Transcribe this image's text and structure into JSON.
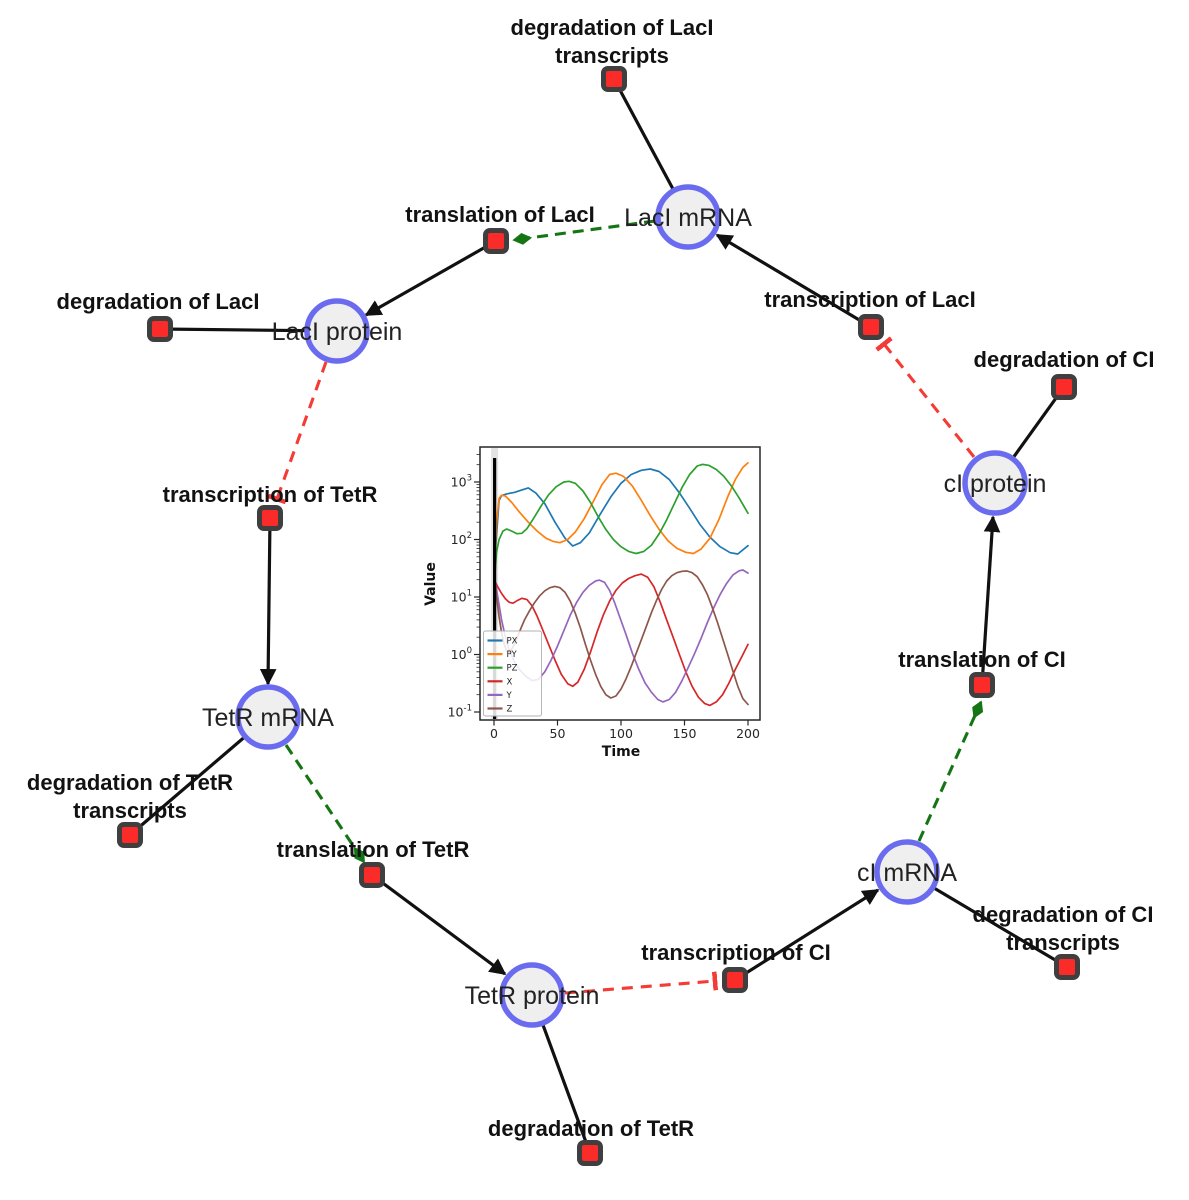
{
  "figure": {
    "background": "#ffffff",
    "species_nodes": {
      "laci_mrna": {
        "label": "LacI mRNA"
      },
      "laci_protein": {
        "label": "LacI protein"
      },
      "tetr_mrna": {
        "label": "TetR mRNA"
      },
      "tetr_protein": {
        "label": "TetR protein"
      },
      "ci_mrna": {
        "label": "cI mRNA"
      },
      "ci_protein": {
        "label": "cI protein"
      }
    },
    "reaction_nodes": {
      "deg_laci_tx": {
        "lines": [
          "degradation of LacI",
          "transcripts"
        ]
      },
      "transl_laci": {
        "label": "translation of LacI"
      },
      "deg_laci": {
        "label": "degradation of LacI"
      },
      "transcr_laci": {
        "label": "transcription of LacI"
      },
      "deg_ci": {
        "label": "degradation of CI"
      },
      "transcr_tetr": {
        "label": "transcription of TetR"
      },
      "deg_tetr_tx": {
        "lines": [
          "degradation of TetR",
          "transcripts"
        ]
      },
      "transl_tetr": {
        "label": "translation of TetR"
      },
      "transl_ci": {
        "label": "translation of CI"
      },
      "deg_ci_tx": {
        "lines": [
          "degradation of CI",
          "transcripts"
        ]
      },
      "transcr_ci": {
        "label": "transcription of CI"
      },
      "deg_tetr": {
        "label": "degradation of TetR"
      }
    },
    "style": {
      "species_fill": "#efefef",
      "species_border": "#6b6bf0",
      "reaction_fill": "#fb2b2a",
      "reaction_border": "#3f3f3f",
      "edge_black": "#111111",
      "edge_activation_green": "#157515",
      "edge_inhibition_red": "#f43b35"
    }
  },
  "chart_data": {
    "type": "line",
    "title": "",
    "xlabel": "Time",
    "ylabel": "Value",
    "x_range": [
      0,
      200
    ],
    "xticks": [
      0,
      50,
      100,
      150,
      200
    ],
    "y_scale": "log",
    "ytick_exponents": [
      -1,
      0,
      1,
      2,
      3
    ],
    "ytick_base": "10",
    "grid": false,
    "legend_position": "lower left",
    "t0_marker": {
      "t": 0.5,
      "line_color": "#000000",
      "band_color": "#c8c8c8"
    },
    "series": [
      {
        "name": "PX",
        "color": "#1f77b4",
        "points": [
          [
            0,
            25
          ],
          [
            2,
            120
          ],
          [
            4,
            480
          ],
          [
            6,
            580
          ],
          [
            10,
            620
          ],
          [
            16,
            660
          ],
          [
            22,
            730
          ],
          [
            27,
            790
          ],
          [
            33,
            640
          ],
          [
            40,
            420
          ],
          [
            48,
            200
          ],
          [
            56,
            105
          ],
          [
            62,
            77
          ],
          [
            68,
            88
          ],
          [
            75,
            130
          ],
          [
            83,
            260
          ],
          [
            92,
            550
          ],
          [
            100,
            950
          ],
          [
            108,
            1350
          ],
          [
            116,
            1600
          ],
          [
            123,
            1680
          ],
          [
            130,
            1520
          ],
          [
            138,
            1100
          ],
          [
            146,
            650
          ],
          [
            154,
            350
          ],
          [
            162,
            185
          ],
          [
            170,
            110
          ],
          [
            178,
            75
          ],
          [
            186,
            59
          ],
          [
            192,
            56
          ],
          [
            200,
            78
          ]
        ]
      },
      {
        "name": "PY",
        "color": "#ff7f0e",
        "points": [
          [
            0,
            20
          ],
          [
            2,
            200
          ],
          [
            4,
            520
          ],
          [
            6,
            590
          ],
          [
            9,
            570
          ],
          [
            14,
            440
          ],
          [
            20,
            300
          ],
          [
            27,
            200
          ],
          [
            34,
            140
          ],
          [
            41,
            105
          ],
          [
            47,
            92
          ],
          [
            52,
            88
          ],
          [
            58,
            100
          ],
          [
            64,
            135
          ],
          [
            71,
            230
          ],
          [
            78,
            450
          ],
          [
            85,
            900
          ],
          [
            91,
            1350
          ],
          [
            96,
            1420
          ],
          [
            102,
            1250
          ],
          [
            109,
            850
          ],
          [
            116,
            480
          ],
          [
            123,
            260
          ],
          [
            130,
            150
          ],
          [
            137,
            95
          ],
          [
            144,
            70
          ],
          [
            151,
            60
          ],
          [
            157,
            57
          ],
          [
            163,
            68
          ],
          [
            170,
            105
          ],
          [
            177,
            220
          ],
          [
            184,
            550
          ],
          [
            190,
            1100
          ],
          [
            196,
            1800
          ],
          [
            200,
            2150
          ]
        ]
      },
      {
        "name": "PZ",
        "color": "#2ca02c",
        "points": [
          [
            0,
            15
          ],
          [
            2,
            60
          ],
          [
            4,
            100
          ],
          [
            7,
            140
          ],
          [
            10,
            152
          ],
          [
            14,
            140
          ],
          [
            18,
            126
          ],
          [
            22,
            128
          ],
          [
            26,
            155
          ],
          [
            31,
            230
          ],
          [
            37,
            380
          ],
          [
            43,
            600
          ],
          [
            49,
            830
          ],
          [
            55,
            1000
          ],
          [
            59,
            1030
          ],
          [
            64,
            950
          ],
          [
            70,
            700
          ],
          [
            76,
            440
          ],
          [
            82,
            250
          ],
          [
            88,
            150
          ],
          [
            94,
            100
          ],
          [
            100,
            75
          ],
          [
            106,
            62
          ],
          [
            112,
            57
          ],
          [
            118,
            62
          ],
          [
            124,
            80
          ],
          [
            130,
            125
          ],
          [
            136,
            220
          ],
          [
            142,
            420
          ],
          [
            148,
            800
          ],
          [
            154,
            1350
          ],
          [
            160,
            1900
          ],
          [
            164,
            2020
          ],
          [
            169,
            1950
          ],
          [
            175,
            1650
          ],
          [
            181,
            1250
          ],
          [
            187,
            850
          ],
          [
            193,
            530
          ],
          [
            200,
            285
          ]
        ]
      },
      {
        "name": "X",
        "color": "#d62728",
        "points": [
          [
            0,
            20
          ],
          [
            3,
            15
          ],
          [
            6,
            11.5
          ],
          [
            9,
            9.3
          ],
          [
            12,
            8.1
          ],
          [
            15,
            7.8
          ],
          [
            18,
            8.6
          ],
          [
            22,
            9.5
          ],
          [
            26,
            9
          ],
          [
            30,
            7
          ],
          [
            34,
            4.6
          ],
          [
            38,
            2.8
          ],
          [
            43,
            1.5
          ],
          [
            48,
            0.8
          ],
          [
            53,
            0.45
          ],
          [
            58,
            0.31
          ],
          [
            62,
            0.28
          ],
          [
            66,
            0.33
          ],
          [
            71,
            0.55
          ],
          [
            76,
            1.1
          ],
          [
            81,
            2.4
          ],
          [
            86,
            4.8
          ],
          [
            91,
            8.5
          ],
          [
            96,
            13
          ],
          [
            101,
            17.5
          ],
          [
            106,
            21
          ],
          [
            111,
            23.5
          ],
          [
            116,
            25
          ],
          [
            121,
            22
          ],
          [
            126,
            15
          ],
          [
            131,
            8
          ],
          [
            136,
            4
          ],
          [
            141,
            2
          ],
          [
            146,
            1
          ],
          [
            151,
            0.5
          ],
          [
            156,
            0.28
          ],
          [
            161,
            0.18
          ],
          [
            166,
            0.14
          ],
          [
            170,
            0.13
          ],
          [
            175,
            0.15
          ],
          [
            180,
            0.2
          ],
          [
            185,
            0.32
          ],
          [
            190,
            0.55
          ],
          [
            195,
            0.9
          ],
          [
            200,
            1.5
          ]
        ]
      },
      {
        "name": "Y",
        "color": "#9467bd",
        "points": [
          [
            0,
            25
          ],
          [
            3,
            10
          ],
          [
            6,
            4
          ],
          [
            9,
            2
          ],
          [
            12,
            1.2
          ],
          [
            16,
            0.75
          ],
          [
            20,
            0.55
          ],
          [
            25,
            0.42
          ],
          [
            30,
            0.35
          ],
          [
            35,
            0.37
          ],
          [
            40,
            0.5
          ],
          [
            45,
            0.8
          ],
          [
            50,
            1.4
          ],
          [
            55,
            2.6
          ],
          [
            60,
            4.8
          ],
          [
            65,
            8
          ],
          [
            70,
            12
          ],
          [
            75,
            16
          ],
          [
            80,
            19
          ],
          [
            83,
            19.7
          ],
          [
            87,
            18
          ],
          [
            91,
            13
          ],
          [
            95,
            8
          ],
          [
            99,
            4.5
          ],
          [
            104,
            2.2
          ],
          [
            109,
            1.05
          ],
          [
            114,
            0.55
          ],
          [
            119,
            0.32
          ],
          [
            124,
            0.22
          ],
          [
            129,
            0.165
          ],
          [
            133,
            0.15
          ],
          [
            138,
            0.165
          ],
          [
            143,
            0.22
          ],
          [
            148,
            0.35
          ],
          [
            153,
            0.6
          ],
          [
            158,
            1.05
          ],
          [
            163,
            1.9
          ],
          [
            168,
            3.6
          ],
          [
            173,
            6.5
          ],
          [
            178,
            11
          ],
          [
            183,
            17
          ],
          [
            188,
            24
          ],
          [
            193,
            28.5
          ],
          [
            196,
            29.5
          ],
          [
            200,
            26
          ]
        ]
      },
      {
        "name": "Z",
        "color": "#8c564b",
        "points": [
          [
            0,
            25
          ],
          [
            2,
            10
          ],
          [
            4,
            4.5
          ],
          [
            6,
            2.4
          ],
          [
            8,
            1.5
          ],
          [
            10,
            1.15
          ],
          [
            12,
            1.1
          ],
          [
            15,
            1.35
          ],
          [
            18,
            1.9
          ],
          [
            21,
            2.8
          ],
          [
            24,
            4
          ],
          [
            28,
            5.8
          ],
          [
            32,
            8
          ],
          [
            36,
            10.5
          ],
          [
            40,
            12.8
          ],
          [
            44,
            14.5
          ],
          [
            48,
            15.3
          ],
          [
            52,
            14.5
          ],
          [
            56,
            12
          ],
          [
            60,
            8.5
          ],
          [
            64,
            5.2
          ],
          [
            68,
            2.9
          ],
          [
            72,
            1.5
          ],
          [
            76,
            0.8
          ],
          [
            80,
            0.45
          ],
          [
            84,
            0.28
          ],
          [
            88,
            0.2
          ],
          [
            92,
            0.175
          ],
          [
            96,
            0.19
          ],
          [
            100,
            0.25
          ],
          [
            104,
            0.38
          ],
          [
            108,
            0.62
          ],
          [
            112,
            1.05
          ],
          [
            116,
            1.8
          ],
          [
            120,
            3.1
          ],
          [
            124,
            5.4
          ],
          [
            128,
            8.8
          ],
          [
            132,
            13.5
          ],
          [
            136,
            19
          ],
          [
            140,
            23.5
          ],
          [
            144,
            26.5
          ],
          [
            148,
            28
          ],
          [
            152,
            28.3
          ],
          [
            156,
            26.5
          ],
          [
            160,
            22.5
          ],
          [
            164,
            16.5
          ],
          [
            168,
            11
          ],
          [
            172,
            6.5
          ],
          [
            176,
            3.6
          ],
          [
            180,
            1.9
          ],
          [
            184,
            1
          ],
          [
            188,
            0.52
          ],
          [
            192,
            0.28
          ],
          [
            196,
            0.17
          ],
          [
            200,
            0.135
          ]
        ]
      }
    ]
  }
}
